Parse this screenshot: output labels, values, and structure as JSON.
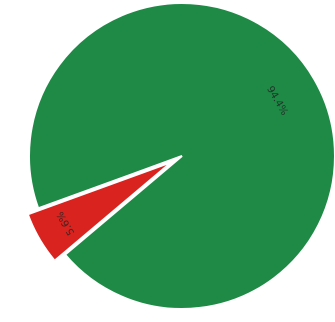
{
  "chart_data": {
    "type": "pie",
    "title": "",
    "slices": [
      {
        "label": "94.4%",
        "value": 94.4,
        "color": "#1e8a46"
      },
      {
        "label": "5.6%",
        "value": 5.6,
        "color": "#d8231f"
      }
    ],
    "exploded_slice": "5.6%",
    "start_angle_deg": 160,
    "legend": "none",
    "grid": false
  }
}
